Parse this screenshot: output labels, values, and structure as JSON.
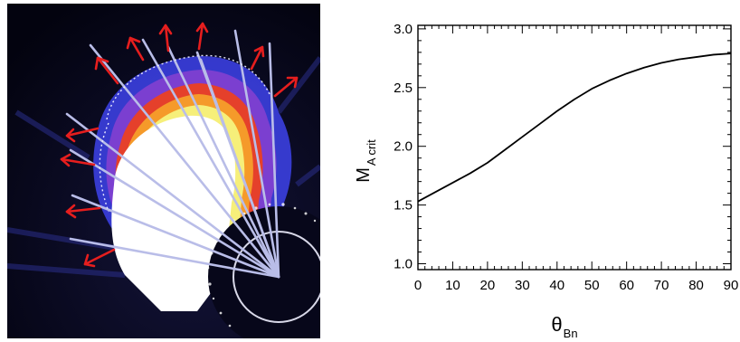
{
  "image_panel": {
    "description_icon": "coronagraph-cme-icon",
    "colors": {
      "background": "#05051a",
      "outer_blue": "#3b3fe0",
      "mid_purple": "#7b3fd0",
      "red": "#e5402b",
      "orange": "#f59a2a",
      "yellow": "#f6ef7a",
      "core": "#ffffff",
      "rays": "#b9bde8",
      "arrows": "#e61e1e",
      "front_dots": "#e8e8ff",
      "occulter_circle": "#d8d8e8"
    }
  },
  "chart_data": {
    "type": "line",
    "title": "",
    "xlabel_main": "θ",
    "xlabel_sub": "Bn",
    "ylabel_main": "M",
    "ylabel_sub": "A crit",
    "xlim": [
      0,
      90
    ],
    "ylim": [
      0.95,
      3.03
    ],
    "x_ticks": [
      0,
      10,
      20,
      30,
      40,
      50,
      60,
      70,
      80,
      90
    ],
    "y_ticks": [
      1.0,
      1.5,
      2.0,
      2.5,
      3.0
    ],
    "x_tick_labels": [
      "0",
      "10",
      "20",
      "30",
      "40",
      "50",
      "60",
      "70",
      "80",
      "90"
    ],
    "y_tick_labels": [
      "1.0",
      "1.5",
      "2.0",
      "2.5",
      "3.0"
    ],
    "x_minor_step": 2,
    "y_minor_step": 0.1,
    "grid": false,
    "series": [
      {
        "x": [
          0,
          5,
          10,
          15,
          20,
          25,
          30,
          35,
          40,
          45,
          50,
          55,
          60,
          65,
          70,
          75,
          80,
          85,
          90
        ],
        "values": [
          1.53,
          1.61,
          1.69,
          1.77,
          1.86,
          1.97,
          2.08,
          2.19,
          2.3,
          2.4,
          2.49,
          2.56,
          2.62,
          2.67,
          2.71,
          2.74,
          2.76,
          2.78,
          2.79
        ]
      }
    ]
  }
}
